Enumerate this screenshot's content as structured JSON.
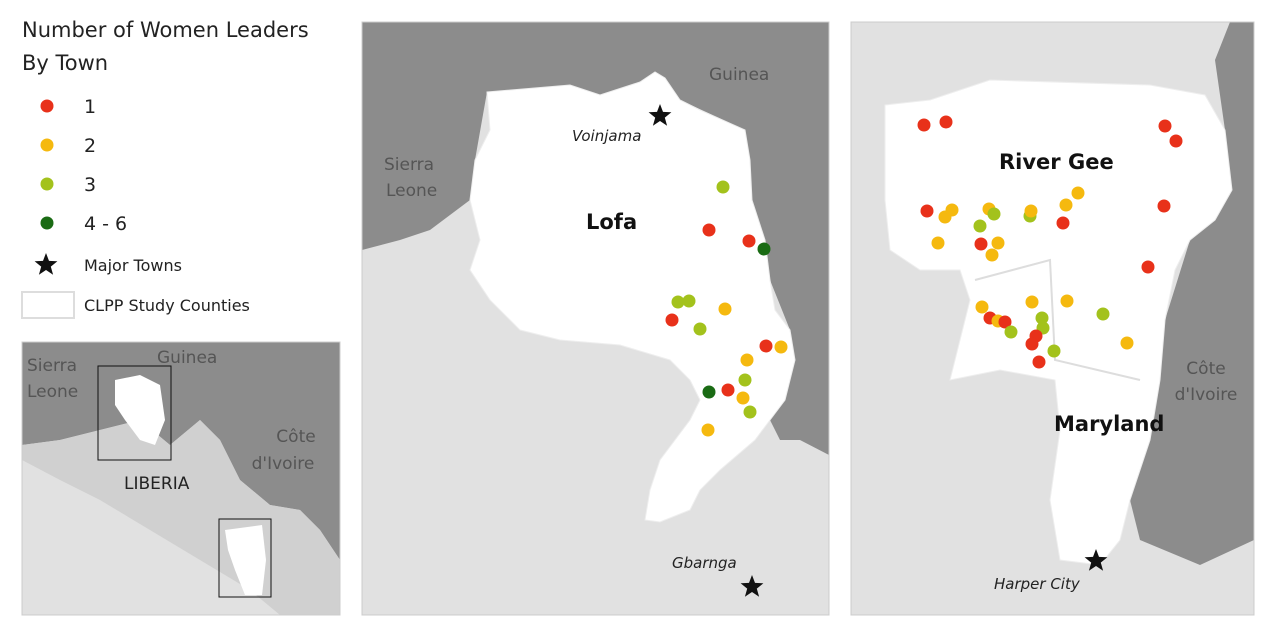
{
  "legend": {
    "title_lines": [
      "Number of Women Leaders",
      "By Town"
    ],
    "items": [
      {
        "label": "1",
        "color": "#e8311a"
      },
      {
        "label": "2",
        "color": "#f5b90f"
      },
      {
        "label": "3",
        "color": "#a3c21c"
      },
      {
        "label": "4 - 6",
        "color": "#1a6b14"
      }
    ],
    "major_towns": "Major Towns",
    "study_counties": "CLPP Study Counties"
  },
  "overview_map": {
    "sierra_leone": [
      "Sierra",
      "Leone"
    ],
    "guinea": "Guinea",
    "cote_divoire": [
      "Côte",
      "d'Ivoire"
    ],
    "liberia": "LIBERIA"
  },
  "lofa_map": {
    "guinea": "Guinea",
    "sierra_leone": [
      "Sierra",
      "Leone"
    ],
    "county": "Lofa",
    "towns": [
      "Voinjama",
      "Gbarnga"
    ]
  },
  "south_map": {
    "counties": [
      "River Gee",
      "Maryland"
    ],
    "cote_divoire": [
      "Côte",
      "d'Ivoire"
    ],
    "town": "Harper City"
  }
}
